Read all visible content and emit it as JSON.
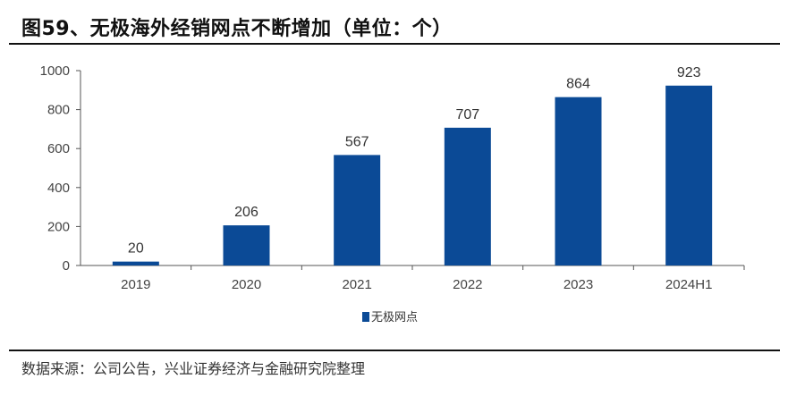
{
  "title": "图59、无极海外经销网点不断增加（单位：个）",
  "source": "数据来源：公司公告，兴业证券经济与金融研究院整理",
  "colors": {
    "bar": "#0B4A96"
  },
  "chart_data": {
    "type": "bar",
    "title": "图59、无极海外经销网点不断增加（单位：个）",
    "categories": [
      "2019",
      "2020",
      "2021",
      "2022",
      "2023",
      "2024H1"
    ],
    "series": [
      {
        "name": "无极网点",
        "values": [
          20,
          206,
          567,
          707,
          864,
          923
        ]
      }
    ],
    "ylim": [
      0,
      1000
    ],
    "yticks": [
      "0",
      "200",
      "400",
      "600",
      "800",
      "1000"
    ],
    "xlabel": "",
    "ylabel": "",
    "grid": false,
    "legend_position": "bottom"
  }
}
